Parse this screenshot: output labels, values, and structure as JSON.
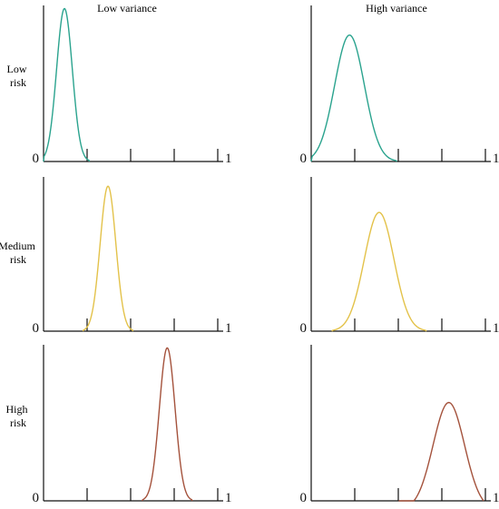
{
  "columns": [
    "Low variance",
    "High variance"
  ],
  "rows": [
    {
      "label_lines": [
        "Low",
        "risk"
      ]
    },
    {
      "label_lines": [
        "Medium",
        "risk"
      ]
    },
    {
      "label_lines": [
        "High",
        "risk"
      ]
    }
  ],
  "colors": {
    "low": "#2aa38e",
    "medium": "#e3c24a",
    "high": "#a4523c",
    "axis": "#111111"
  },
  "chart_data": {
    "type": "line",
    "xlim": [
      0,
      1
    ],
    "x_ticks": [
      0.25,
      0.5,
      0.75,
      1
    ],
    "tick_labels": {
      "start": "0",
      "end": "1"
    },
    "grid": false,
    "panels": [
      {
        "row": 0,
        "col": 0,
        "color_key": "low",
        "mean": 0.12,
        "sd": 0.045,
        "peak": 0.98
      },
      {
        "row": 0,
        "col": 1,
        "color_key": "low",
        "mean": 0.22,
        "sd": 0.085,
        "peak": 0.81
      },
      {
        "row": 1,
        "col": 0,
        "color_key": "medium",
        "mean": 0.37,
        "sd": 0.045,
        "peak": 0.94
      },
      {
        "row": 1,
        "col": 1,
        "color_key": "medium",
        "mean": 0.39,
        "sd": 0.085,
        "peak": 0.77
      },
      {
        "row": 2,
        "col": 0,
        "color_key": "high",
        "mean": 0.71,
        "sd": 0.045,
        "peak": 0.98
      },
      {
        "row": 2,
        "col": 1,
        "color_key": "high",
        "mean": 0.79,
        "sd": 0.09,
        "peak": 0.63,
        "clip": 0.99
      }
    ]
  }
}
